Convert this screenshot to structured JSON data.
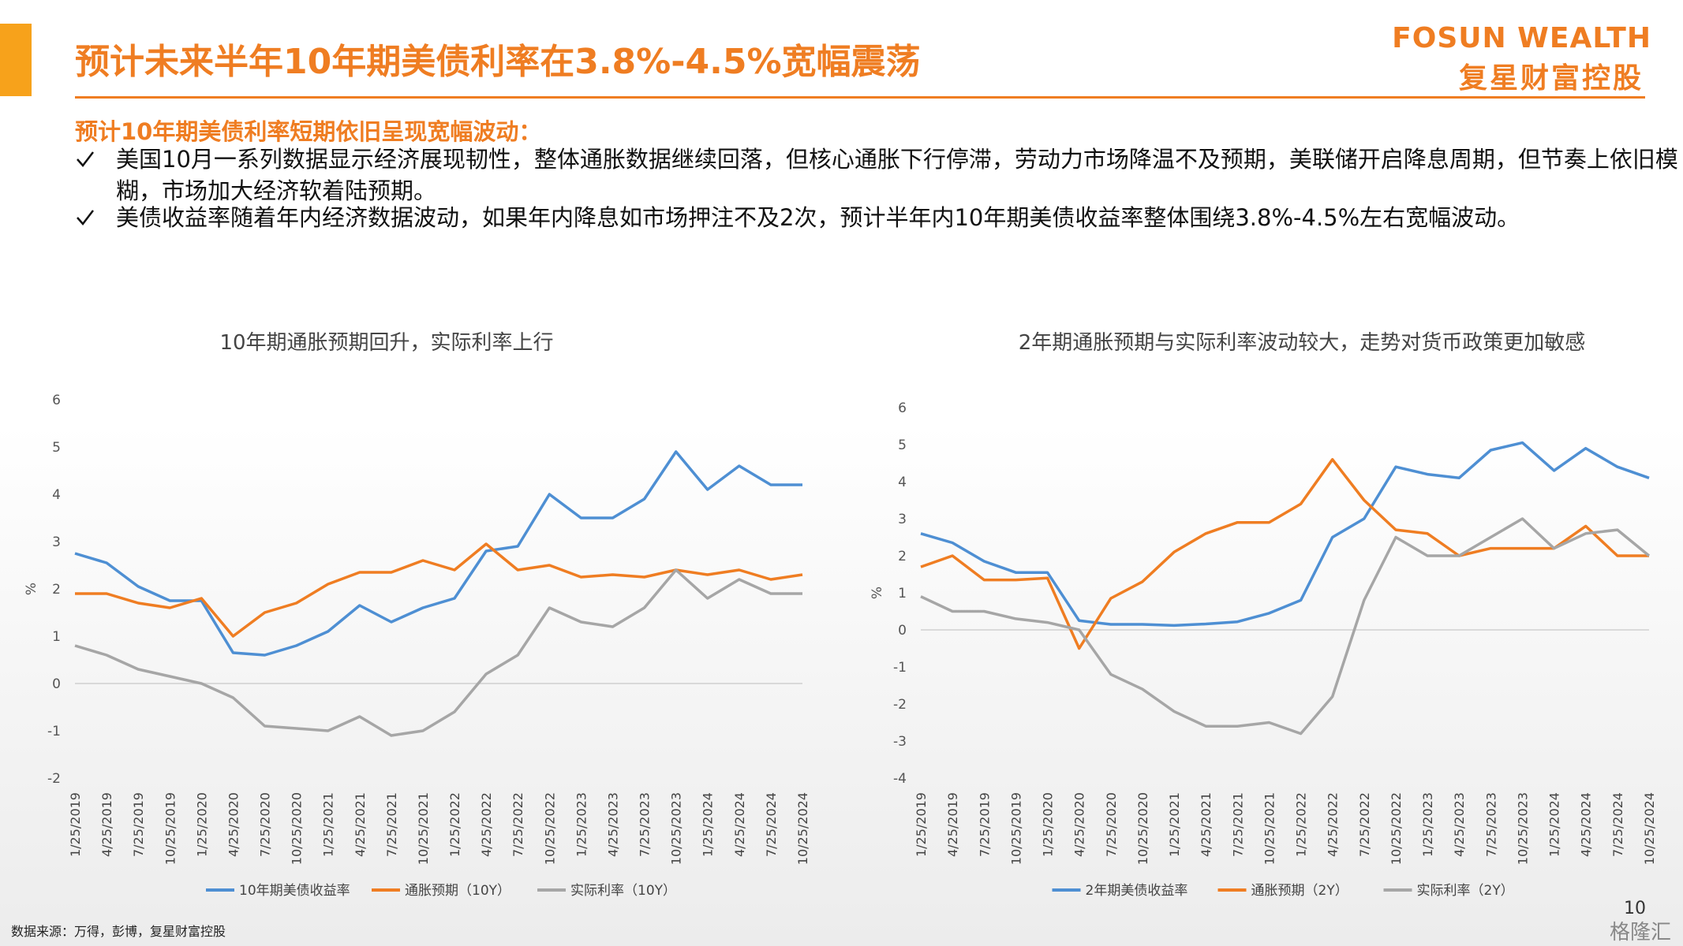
{
  "header": {
    "title": "预计未来半年10年期美债利率在3.8%-4.5%宽幅震荡",
    "logo_en": "FOSUN WEALTH",
    "logo_cn": "复星财富控股"
  },
  "summary": {
    "subtitle": "预计10年期美债利率短期依旧呈现宽幅波动：",
    "bullets": [
      "美国10月一系列数据显示经济展现韧性，整体通胀数据继续回落，但核心通胀下行停滞，劳动力市场降温不及预期，美联储开启降息周期，但节奏上依旧模糊，市场加大经济软着陆预期。",
      "美债收益率随着年内经济数据波动，如果年内降息如市场押注不及2次，预计半年内10年期美债收益率整体围绕3.8%-4.5%左右宽幅波动。"
    ]
  },
  "chart_data": [
    {
      "type": "line",
      "title": "10年期通胀预期回升，实际利率上行",
      "y_label": "%",
      "categories": [
        "1/25/2019",
        "4/25/2019",
        "7/25/2019",
        "10/25/2019",
        "1/25/2020",
        "4/25/2020",
        "7/25/2020",
        "10/25/2020",
        "1/25/2021",
        "4/25/2021",
        "7/25/2021",
        "10/25/2021",
        "1/25/2022",
        "4/25/2022",
        "7/25/2022",
        "10/25/2022",
        "1/25/2023",
        "4/25/2023",
        "7/25/2023",
        "10/25/2023",
        "1/25/2024",
        "4/25/2024",
        "7/25/2024",
        "10/25/2024"
      ],
      "series": [
        {
          "name": "10年期美债收益率",
          "color": "#4e8fd3",
          "values": [
            2.75,
            2.55,
            2.05,
            1.75,
            1.75,
            0.65,
            0.6,
            0.8,
            1.1,
            1.65,
            1.3,
            1.6,
            1.8,
            2.8,
            2.9,
            4.0,
            3.5,
            3.5,
            3.9,
            4.9,
            4.1,
            4.6,
            4.2,
            4.2
          ]
        },
        {
          "name": "通胀预期（10Y）",
          "color": "#ef7d22",
          "values": [
            1.9,
            1.9,
            1.7,
            1.6,
            1.8,
            1.0,
            1.5,
            1.7,
            2.1,
            2.35,
            2.35,
            2.6,
            2.4,
            2.95,
            2.4,
            2.5,
            2.25,
            2.3,
            2.25,
            2.4,
            2.3,
            2.4,
            2.2,
            2.3
          ]
        },
        {
          "name": "实际利率（10Y）",
          "color": "#a6a6a6",
          "values": [
            0.8,
            0.6,
            0.3,
            0.15,
            0.0,
            -0.3,
            -0.9,
            -0.95,
            -1.0,
            -0.7,
            -1.1,
            -1.0,
            -0.6,
            0.2,
            0.6,
            1.6,
            1.3,
            1.2,
            1.6,
            2.4,
            1.8,
            2.2,
            1.9,
            1.9
          ]
        }
      ],
      "ylim": [
        -2,
        6
      ],
      "yticks": [
        -2,
        -1,
        0,
        1,
        2,
        3,
        4,
        5,
        6
      ],
      "grid": false,
      "legend": "bottom"
    },
    {
      "type": "line",
      "title": "2年期通胀预期与实际利率波动较大，走势对货币政策更加敏感",
      "y_label": "%",
      "categories": [
        "1/25/2019",
        "4/25/2019",
        "7/25/2019",
        "10/25/2019",
        "1/25/2020",
        "4/25/2020",
        "7/25/2020",
        "10/25/2020",
        "1/25/2021",
        "4/25/2021",
        "7/25/2021",
        "10/25/2021",
        "1/25/2022",
        "4/25/2022",
        "7/25/2022",
        "10/25/2022",
        "1/25/2023",
        "4/25/2023",
        "7/25/2023",
        "10/25/2023",
        "1/25/2024",
        "4/25/2024",
        "7/25/2024",
        "10/25/2024"
      ],
      "series": [
        {
          "name": "2年期美债收益率",
          "color": "#4e8fd3",
          "values": [
            2.6,
            2.35,
            1.85,
            1.55,
            1.55,
            0.25,
            0.15,
            0.15,
            0.12,
            0.16,
            0.22,
            0.45,
            0.8,
            2.5,
            3.0,
            4.4,
            4.2,
            4.1,
            4.85,
            5.05,
            4.3,
            4.9,
            4.4,
            4.1
          ]
        },
        {
          "name": "通胀预期（2Y）",
          "color": "#ef7d22",
          "values": [
            1.7,
            2.0,
            1.35,
            1.35,
            1.4,
            -0.5,
            0.85,
            1.3,
            2.1,
            2.6,
            2.9,
            2.9,
            3.4,
            4.6,
            3.5,
            2.7,
            2.6,
            2.0,
            2.2,
            2.2,
            2.2,
            2.8,
            2.0,
            2.0
          ]
        },
        {
          "name": "实际利率（2Y）",
          "color": "#a6a6a6",
          "values": [
            0.9,
            0.5,
            0.5,
            0.3,
            0.2,
            0.0,
            -1.2,
            -1.6,
            -2.2,
            -2.6,
            -2.6,
            -2.5,
            -2.8,
            -1.8,
            0.8,
            2.5,
            2.0,
            2.0,
            2.5,
            3.0,
            2.2,
            2.6,
            2.7,
            2.0
          ]
        }
      ],
      "ylim": [
        -4,
        6
      ],
      "yticks": [
        -4,
        -3,
        -2,
        -1,
        0,
        1,
        2,
        3,
        4,
        5,
        6
      ],
      "grid": false,
      "legend": "bottom"
    }
  ],
  "footer": {
    "source": "数据来源：万得，彭博，复星财富控股",
    "page": "10",
    "watermark": "格隆汇"
  }
}
